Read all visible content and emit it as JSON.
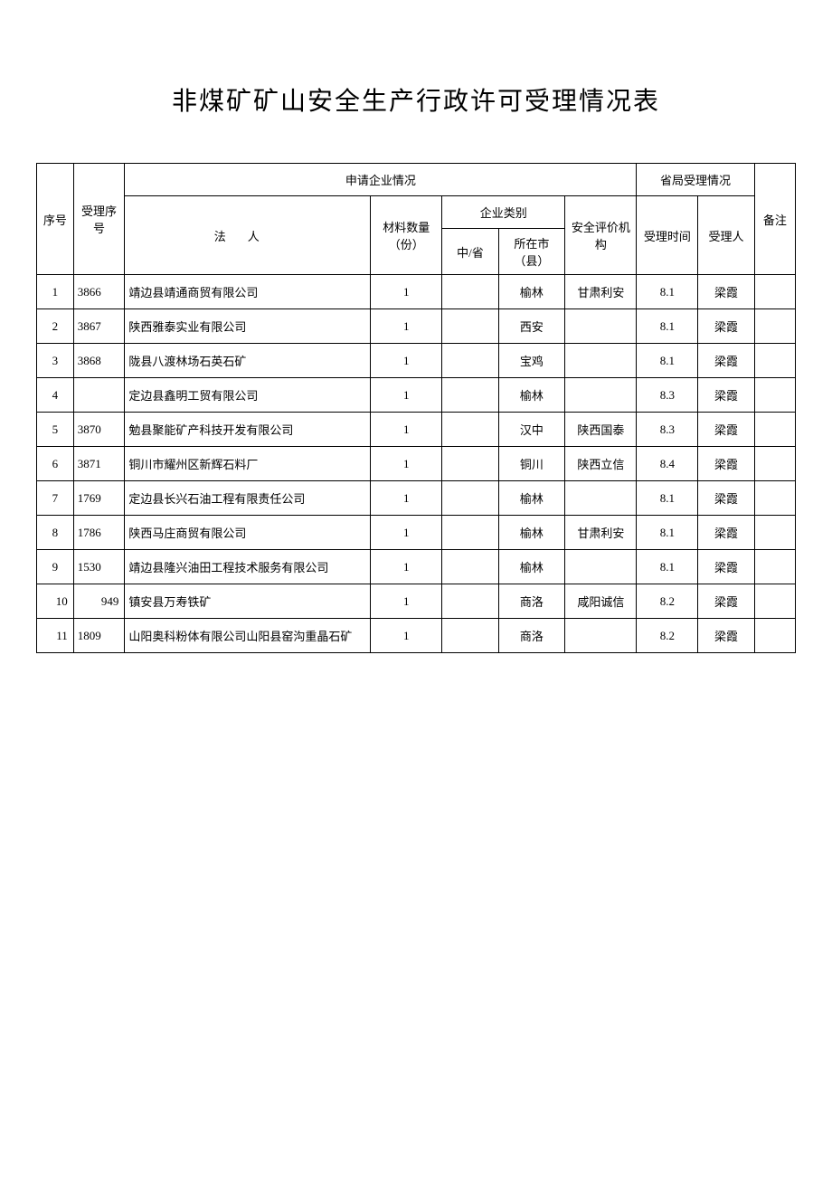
{
  "title": "非煤矿矿山安全生产行政许可受理情况表",
  "headers": {
    "seq": "序号",
    "accept_seq": "受理序号",
    "applicant_info": "申请企业情况",
    "legal_person": "法人",
    "material_count": "材料数量（份）",
    "enterprise_type": "企业类别",
    "central_province": "中/省",
    "city_county": "所在市（县）",
    "safety_org": "安全评价机构",
    "provincial_acceptance": "省局受理情况",
    "accept_time": "受理时间",
    "accept_person": "受理人",
    "remark": "备注"
  },
  "rows": [
    {
      "seq": "1",
      "accept_seq": "3866",
      "legal_person": "靖边县靖通商贸有限公司",
      "material": "1",
      "central": "",
      "city": "榆林",
      "safety": "甘肃利安",
      "time": "8.1",
      "person": "梁霞",
      "remark": ""
    },
    {
      "seq": "2",
      "accept_seq": "3867",
      "legal_person": "陕西雅泰实业有限公司",
      "material": "1",
      "central": "",
      "city": "西安",
      "safety": "",
      "time": "8.1",
      "person": "梁霞",
      "remark": ""
    },
    {
      "seq": "3",
      "accept_seq": "3868",
      "legal_person": "陇县八渡林场石英石矿",
      "material": "1",
      "central": "",
      "city": "宝鸡",
      "safety": "",
      "time": "8.1",
      "person": "梁霞",
      "remark": ""
    },
    {
      "seq": "4",
      "accept_seq": "",
      "legal_person": "定边县鑫明工贸有限公司",
      "material": "1",
      "central": "",
      "city": "榆林",
      "safety": "",
      "time": "8.3",
      "person": "梁霞",
      "remark": ""
    },
    {
      "seq": "5",
      "accept_seq": "3870",
      "legal_person": "勉县聚能矿产科技开发有限公司",
      "material": "1",
      "central": "",
      "city": "汉中",
      "safety": "陕西国泰",
      "time": "8.3",
      "person": "梁霞",
      "remark": ""
    },
    {
      "seq": "6",
      "accept_seq": "3871",
      "legal_person": "铜川市耀州区新辉石料厂",
      "material": "1",
      "central": "",
      "city": "铜川",
      "safety": "陕西立信",
      "time": "8.4",
      "person": "梁霞",
      "remark": ""
    },
    {
      "seq": "7",
      "accept_seq": "1769",
      "legal_person": "定边县长兴石油工程有限责任公司",
      "material": "1",
      "central": "",
      "city": "榆林",
      "safety": "",
      "time": "8.1",
      "person": "梁霞",
      "remark": ""
    },
    {
      "seq": "8",
      "accept_seq": "1786",
      "legal_person": "陕西马庄商贸有限公司",
      "material": "1",
      "central": "",
      "city": "榆林",
      "safety": "甘肃利安",
      "time": "8.1",
      "person": "梁霞",
      "remark": ""
    },
    {
      "seq": "9",
      "accept_seq": "1530",
      "legal_person": "靖边县隆兴油田工程技术服务有限公司",
      "material": "1",
      "central": "",
      "city": "榆林",
      "safety": "",
      "time": "8.1",
      "person": "梁霞",
      "remark": ""
    },
    {
      "seq": "10",
      "accept_seq": "949",
      "legal_person": "镇安县万寿铁矿",
      "material": "1",
      "central": "",
      "city": "商洛",
      "safety": "咸阳诚信",
      "time": "8.2",
      "person": "梁霞",
      "remark": ""
    },
    {
      "seq": "11",
      "accept_seq": "1809",
      "legal_person": "山阳奥科粉体有限公司山阳县窑沟重晶石矿",
      "material": "1",
      "central": "",
      "city": "商洛",
      "safety": "",
      "time": "8.2",
      "person": "梁霞",
      "remark": ""
    }
  ]
}
